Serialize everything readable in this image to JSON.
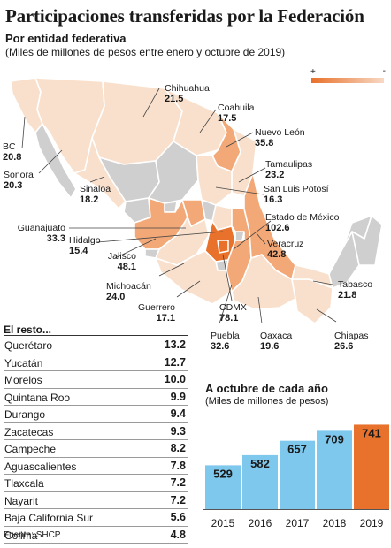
{
  "header": {
    "title": "Participaciones transferidas por la Federación",
    "subtitle": "Por entidad federativa",
    "unit": "(Miles de millones de pesos entre enero y octubre de 2019)"
  },
  "legend": {
    "plus": "+",
    "minus": "-"
  },
  "map": {
    "states": [
      {
        "name": "Chihuahua",
        "value": "21.5"
      },
      {
        "name": "Coahuila",
        "value": "17.5"
      },
      {
        "name": "Nuevo León",
        "value": "35.8"
      },
      {
        "name": "BC",
        "value": "20.8"
      },
      {
        "name": "Sonora",
        "value": "20.3"
      },
      {
        "name": "Tamaulipas",
        "value": "23.2"
      },
      {
        "name": "Sinaloa",
        "value": "18.2"
      },
      {
        "name": "San Luis Potosí",
        "value": "16.3"
      },
      {
        "name": "Guanajuato",
        "value": "33.3"
      },
      {
        "name": "Estado de México",
        "value": "102.6"
      },
      {
        "name": "Hidalgo",
        "value": "15.4"
      },
      {
        "name": "Veracruz",
        "value": "42.8"
      },
      {
        "name": "Jalisco",
        "value": "48.1"
      },
      {
        "name": "Michoacán",
        "value": "24.0"
      },
      {
        "name": "Guerrero",
        "value": "17.1"
      },
      {
        "name": "CDMX",
        "value": "78.1"
      },
      {
        "name": "Tabasco",
        "value": "21.8"
      },
      {
        "name": "Puebla",
        "value": "32.6"
      },
      {
        "name": "Oaxaca",
        "value": "19.6"
      },
      {
        "name": "Chiapas",
        "value": "26.6"
      }
    ]
  },
  "resto": {
    "title": "El resto...",
    "rows": [
      {
        "name": "Querétaro",
        "value": "13.2"
      },
      {
        "name": "Yucatán",
        "value": "12.7"
      },
      {
        "name": "Morelos",
        "value": "10.0"
      },
      {
        "name": "Quintana Roo",
        "value": "9.9"
      },
      {
        "name": "Durango",
        "value": "9.4"
      },
      {
        "name": "Zacatecas",
        "value": "9.3"
      },
      {
        "name": "Campeche",
        "value": "8.2"
      },
      {
        "name": "Aguascalientes",
        "value": "7.8"
      },
      {
        "name": "Tlaxcala",
        "value": "7.2"
      },
      {
        "name": "Nayarit",
        "value": "7.2"
      },
      {
        "name": "Baja California Sur",
        "value": "5.6"
      },
      {
        "name": "Colima",
        "value": "4.8"
      }
    ]
  },
  "bars_title": "A octubre de cada año",
  "bars_unit": "(Miles de millones de pesos)",
  "source": "Fuente: SHCP",
  "colors": {
    "bar_blue": "#7ec8ee",
    "bar_highlight": "#e8712b",
    "map_light": "#f9e0cc",
    "map_mid": "#f2a877",
    "map_dark": "#e8712b",
    "map_none": "#cfcfcf"
  },
  "chart_data": {
    "type": "bar",
    "categories": [
      "2015",
      "2016",
      "2017",
      "2018",
      "2019"
    ],
    "values": [
      529,
      582,
      657,
      709,
      741
    ],
    "title": "A octubre de cada año",
    "ylabel": "(Miles de millones de pesos)",
    "highlight": "2019"
  }
}
